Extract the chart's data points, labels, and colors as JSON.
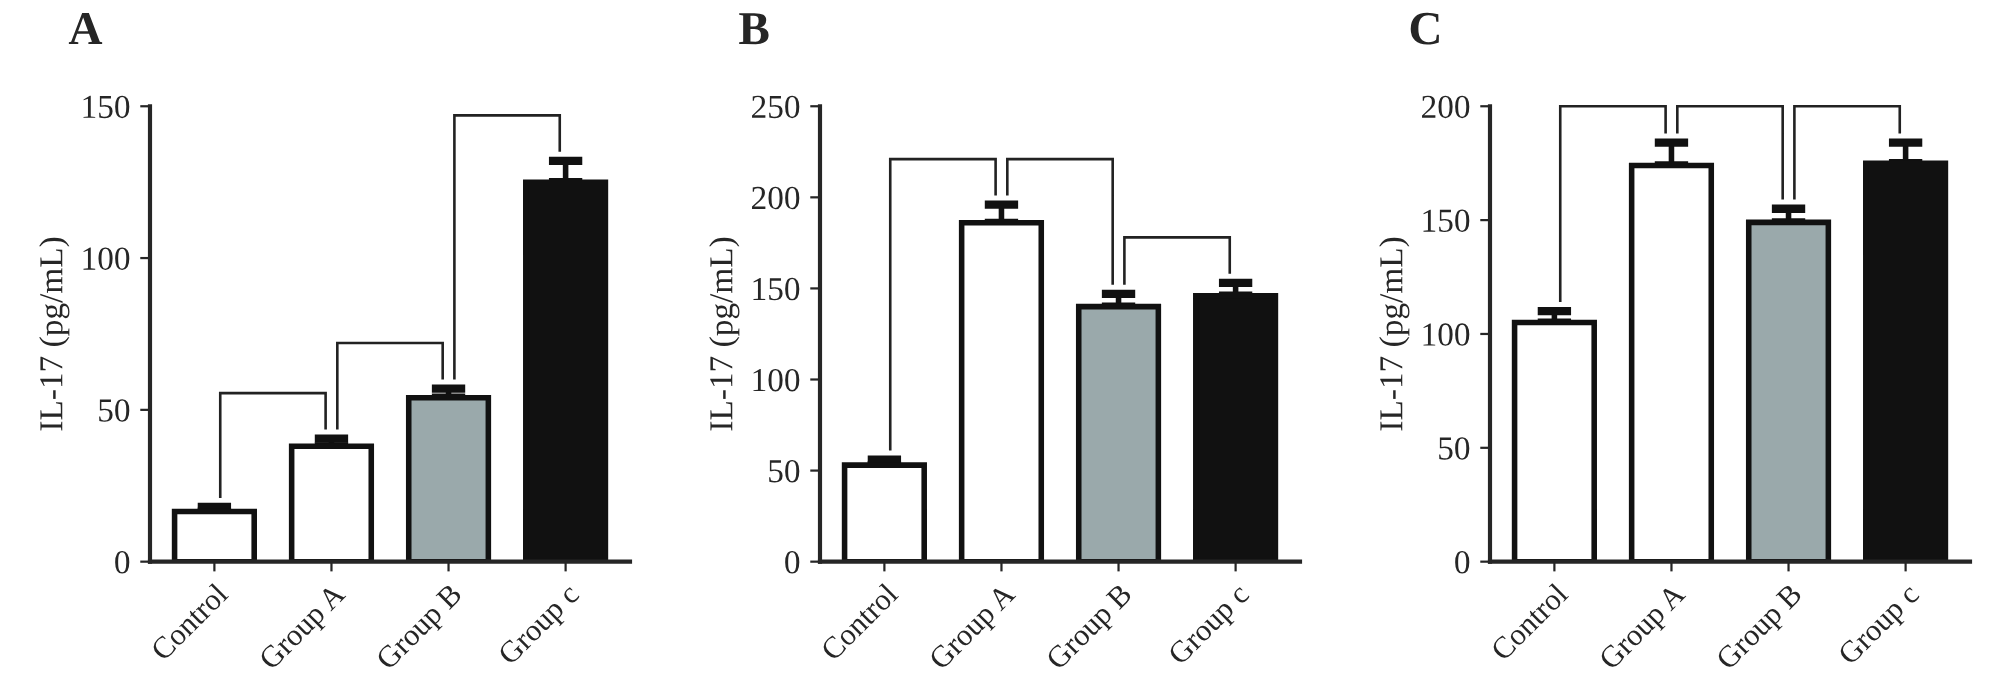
{
  "chart_data": [
    {
      "type": "bar",
      "title": "A",
      "ylabel": "IL-17 (pg/mL)",
      "categories": [
        "Control",
        "Group A",
        "Group B",
        "Group c"
      ],
      "values": [
        16.5,
        38,
        54,
        125
      ],
      "errors": [
        [
          16.5,
          18
        ],
        [
          38,
          40.5
        ],
        [
          54,
          57
        ],
        [
          125,
          132
        ]
      ],
      "colors": [
        "#ffffff",
        "#ffffff",
        "#9aa9ab",
        "#111111"
      ],
      "ylim": [
        0,
        150
      ],
      "yticks": [
        0,
        50,
        100,
        150
      ],
      "grid": false,
      "legend": false
    },
    {
      "type": "bar",
      "title": "B",
      "ylabel": "IL-17 (pg/mL)",
      "categories": [
        "Control",
        "Group A",
        "Group B",
        "Group c"
      ],
      "values": [
        53,
        186,
        140,
        146
      ],
      "errors": [
        [
          53,
          56
        ],
        [
          186,
          196
        ],
        [
          140,
          147
        ],
        [
          146,
          153
        ]
      ],
      "colors": [
        "#ffffff",
        "#ffffff",
        "#9aa9ab",
        "#111111"
      ],
      "ylim": [
        0,
        250
      ],
      "yticks": [
        0,
        50,
        100,
        150,
        200,
        250
      ],
      "grid": false,
      "legend": false
    },
    {
      "type": "bar",
      "title": "C",
      "ylabel": "IL-17 (pg/mL)",
      "categories": [
        "Control",
        "Group A",
        "Group B",
        "Group c"
      ],
      "values": [
        105,
        174,
        149,
        175
      ],
      "errors": [
        [
          105,
          110
        ],
        [
          174,
          184
        ],
        [
          149,
          155
        ],
        [
          175,
          184
        ]
      ],
      "colors": [
        "#ffffff",
        "#ffffff",
        "#9aa9ab",
        "#111111"
      ],
      "ylim": [
        0,
        200
      ],
      "yticks": [
        0,
        50,
        100,
        150,
        200
      ],
      "grid": false,
      "legend": false
    }
  ]
}
